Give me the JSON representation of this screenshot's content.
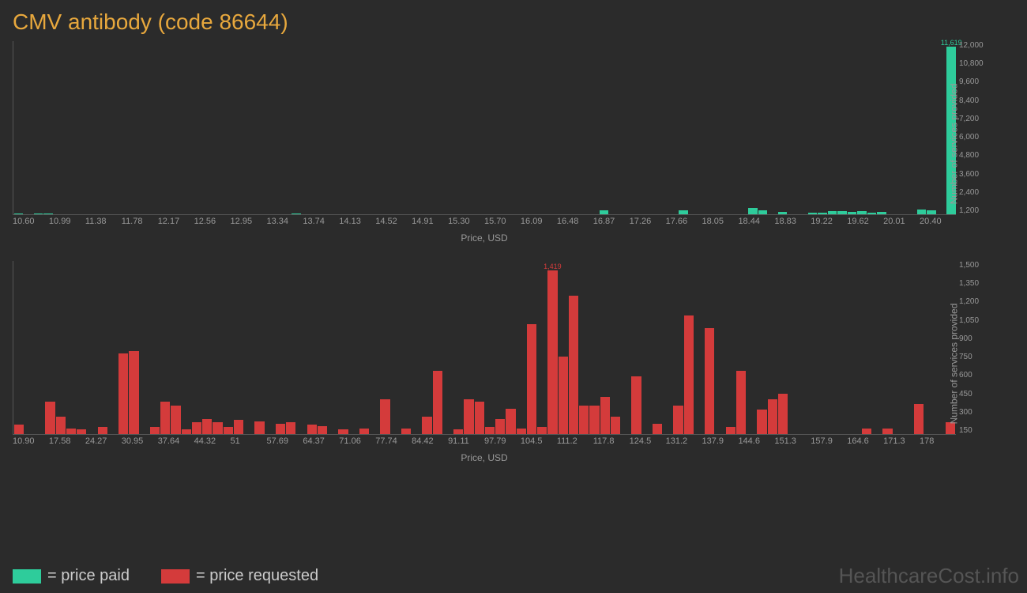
{
  "title": "CMV antibody (code 86644)",
  "colors": {
    "background": "#2b2b2b",
    "title": "#e8a83d",
    "paid": "#2ecc9b",
    "requested": "#d43b3b",
    "axis_text": "#999999",
    "axis_line": "#555555"
  },
  "legend": {
    "paid": "= price paid",
    "requested": "= price requested"
  },
  "watermark": "HealthcareCost.info",
  "chart_top": {
    "type": "bar",
    "x_label": "Price, USD",
    "y_label": "Number of services provided",
    "y_max": 12000,
    "y_ticks": [
      "1,200",
      "2,400",
      "3,600",
      "4,800",
      "6,000",
      "7,200",
      "8,400",
      "9,600",
      "10,800",
      "12,000"
    ],
    "x_ticks": [
      "10.60",
      "10.99",
      "11.38",
      "11.78",
      "12.17",
      "12.56",
      "12.95",
      "13.34",
      "13.74",
      "14.13",
      "14.52",
      "14.91",
      "15.30",
      "15.70",
      "16.09",
      "16.48",
      "16.87",
      "17.26",
      "17.66",
      "18.05",
      "18.44",
      "18.83",
      "19.22",
      "19.62",
      "20.01",
      "20.40"
    ],
    "peak_label": "11,619",
    "bars": [
      80,
      0,
      60,
      70,
      0,
      0,
      0,
      0,
      0,
      0,
      0,
      0,
      0,
      0,
      0,
      0,
      0,
      0,
      0,
      0,
      0,
      0,
      0,
      0,
      0,
      0,
      0,
      0,
      60,
      0,
      0,
      0,
      0,
      0,
      0,
      0,
      0,
      0,
      0,
      0,
      0,
      0,
      0,
      0,
      0,
      0,
      0,
      0,
      0,
      0,
      0,
      0,
      0,
      0,
      0,
      0,
      0,
      0,
      0,
      280,
      0,
      0,
      0,
      0,
      0,
      0,
      0,
      300,
      0,
      0,
      0,
      0,
      0,
      0,
      450,
      300,
      0,
      150,
      0,
      0,
      100,
      100,
      220,
      220,
      180,
      200,
      120,
      150,
      0,
      0,
      0,
      350,
      280,
      0,
      11619
    ]
  },
  "chart_bottom": {
    "type": "bar",
    "x_label": "Price, USD",
    "y_label": "Number of services provided",
    "y_max": 1500,
    "y_ticks": [
      "150",
      "300",
      "450",
      "600",
      "750",
      "900",
      "1,050",
      "1,200",
      "1,350",
      "1,500"
    ],
    "x_ticks": [
      "10.90",
      "17.58",
      "24.27",
      "30.95",
      "37.64",
      "44.32",
      "51",
      "57.69",
      "64.37",
      "71.06",
      "77.74",
      "84.42",
      "91.11",
      "97.79",
      "104.5",
      "111.2",
      "117.8",
      "124.5",
      "131.2",
      "137.9",
      "144.6",
      "151.3",
      "157.9",
      "164.6",
      "171.3",
      "178"
    ],
    "peak_label": "1,419",
    "bars": [
      80,
      0,
      0,
      280,
      150,
      50,
      40,
      0,
      60,
      0,
      700,
      720,
      0,
      60,
      280,
      250,
      40,
      100,
      130,
      100,
      60,
      120,
      0,
      110,
      0,
      90,
      100,
      0,
      80,
      70,
      0,
      40,
      0,
      50,
      0,
      300,
      0,
      50,
      0,
      150,
      550,
      0,
      40,
      300,
      280,
      60,
      130,
      220,
      50,
      950,
      60,
      1419,
      670,
      1200,
      250,
      250,
      320,
      150,
      0,
      500,
      0,
      90,
      0,
      250,
      1030,
      0,
      920,
      0,
      60,
      550,
      0,
      210,
      300,
      350,
      0,
      0,
      0,
      0,
      0,
      0,
      0,
      50,
      0,
      50,
      0,
      0,
      260,
      0,
      0,
      100
    ]
  }
}
